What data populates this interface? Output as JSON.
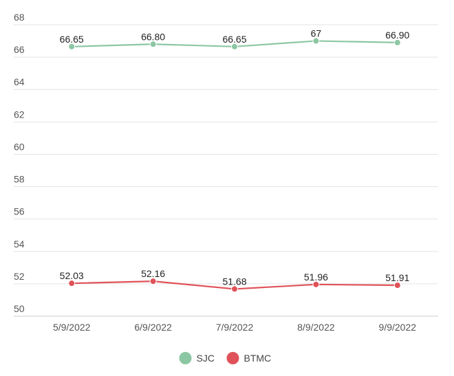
{
  "chart_data": {
    "type": "line",
    "title": "",
    "xlabel": "",
    "ylabel": "",
    "categories": [
      "5/9/2022",
      "6/9/2022",
      "7/9/2022",
      "8/9/2022",
      "9/9/2022"
    ],
    "ylim": [
      50,
      68
    ],
    "yticks": [
      "50",
      "52",
      "54",
      "56",
      "58",
      "60",
      "62",
      "64",
      "66",
      "68"
    ],
    "grid": true,
    "legend_position": "bottom-center",
    "series": [
      {
        "name": "SJC",
        "color": "#8cc7a3",
        "values": [
          66.65,
          66.8,
          66.65,
          67,
          66.9
        ],
        "labels": [
          "66.65",
          "66.80",
          "66.65",
          "67",
          "66.90"
        ]
      },
      {
        "name": "BTMC",
        "color": "#e05259",
        "values": [
          52.03,
          52.16,
          51.68,
          51.96,
          51.91
        ],
        "labels": [
          "52.03",
          "52.16",
          "51.68",
          "51.96",
          "51.91"
        ]
      }
    ]
  }
}
